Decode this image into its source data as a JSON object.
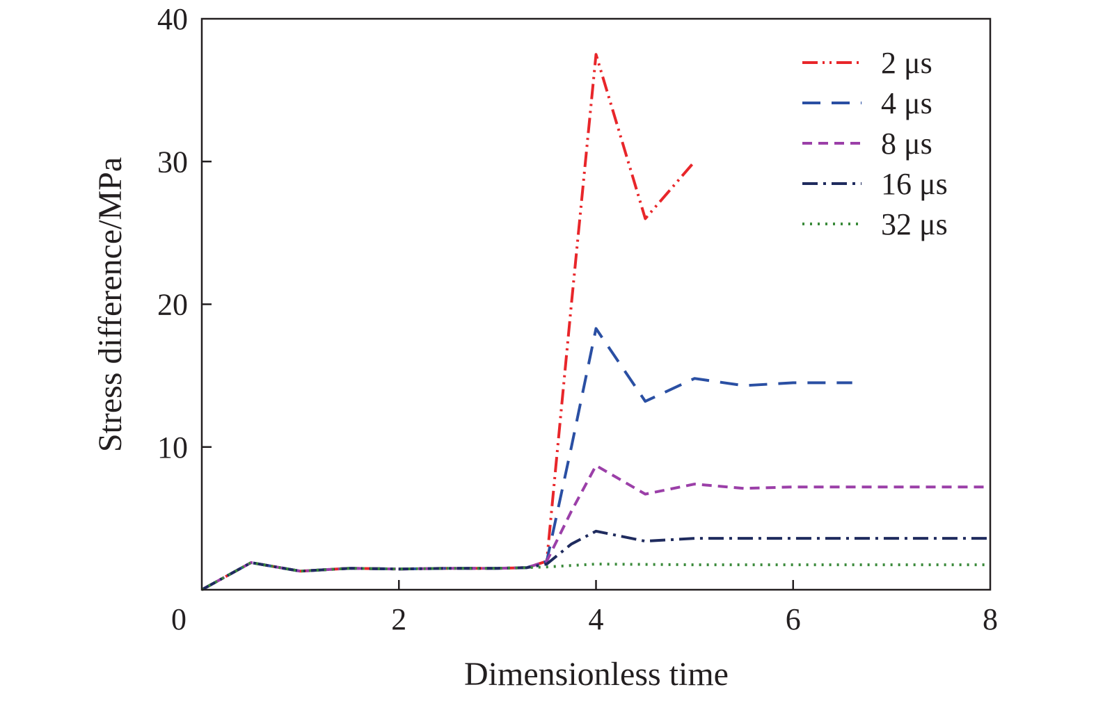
{
  "chart_data": {
    "type": "line",
    "xlabel": "Dimensionless time",
    "ylabel": "Stress difference/MPa",
    "xlim": [
      0,
      8
    ],
    "ylim": [
      0,
      40
    ],
    "xticks": [
      0,
      2,
      4,
      6,
      8
    ],
    "yticks": [
      10,
      20,
      30,
      40
    ],
    "x_tick_labels": [
      "0",
      "2",
      "4",
      "6",
      "8"
    ],
    "y_tick_labels": [
      "10",
      "20",
      "30",
      "40"
    ],
    "grid": false,
    "legend_position": "top-right",
    "series": [
      {
        "name": "2 μs",
        "color": "#e8262a",
        "dash": "dash-dot-dot",
        "x": [
          0,
          0.5,
          1.0,
          1.5,
          2.0,
          2.5,
          3.0,
          3.3,
          3.5,
          3.75,
          4.0,
          4.5,
          5.0
        ],
        "y": [
          0,
          1.9,
          1.3,
          1.5,
          1.45,
          1.5,
          1.5,
          1.55,
          2.0,
          20.0,
          37.5,
          26.0,
          30.0
        ]
      },
      {
        "name": "4 μs",
        "color": "#2a4fa3",
        "dash": "long-dash",
        "x": [
          0,
          0.5,
          1.0,
          1.5,
          2.0,
          2.5,
          3.0,
          3.3,
          3.5,
          3.75,
          4.0,
          4.5,
          5.0,
          5.5,
          6.0,
          6.6
        ],
        "y": [
          0,
          1.9,
          1.3,
          1.5,
          1.45,
          1.5,
          1.5,
          1.55,
          2.0,
          10.0,
          18.3,
          13.2,
          14.8,
          14.3,
          14.5,
          14.5
        ]
      },
      {
        "name": "8 μs",
        "color": "#9b3fa8",
        "dash": "short-dash",
        "x": [
          0,
          0.5,
          1.0,
          1.5,
          2.0,
          2.5,
          3.0,
          3.3,
          3.5,
          3.75,
          4.0,
          4.5,
          5.0,
          5.5,
          6.0,
          7.0,
          8.0
        ],
        "y": [
          0,
          1.9,
          1.3,
          1.5,
          1.45,
          1.5,
          1.5,
          1.55,
          2.0,
          5.5,
          8.7,
          6.7,
          7.4,
          7.1,
          7.2,
          7.2,
          7.2
        ]
      },
      {
        "name": "16 μs",
        "color": "#1f2b5e",
        "dash": "dash-dot",
        "x": [
          0,
          0.5,
          1.0,
          1.5,
          2.0,
          2.5,
          3.0,
          3.3,
          3.5,
          3.75,
          4.0,
          4.5,
          5.0,
          6.0,
          7.0,
          8.0
        ],
        "y": [
          0,
          1.9,
          1.3,
          1.5,
          1.45,
          1.5,
          1.5,
          1.55,
          1.8,
          3.2,
          4.1,
          3.4,
          3.6,
          3.6,
          3.6,
          3.6
        ]
      },
      {
        "name": "32 μs",
        "color": "#3a8a3a",
        "dash": "dotted",
        "x": [
          0,
          0.5,
          1.0,
          1.5,
          2.0,
          2.5,
          3.0,
          3.3,
          3.5,
          4.0,
          5.0,
          6.0,
          7.0,
          8.0
        ],
        "y": [
          0,
          1.9,
          1.3,
          1.5,
          1.45,
          1.5,
          1.5,
          1.55,
          1.6,
          1.8,
          1.75,
          1.75,
          1.75,
          1.75
        ]
      }
    ]
  }
}
